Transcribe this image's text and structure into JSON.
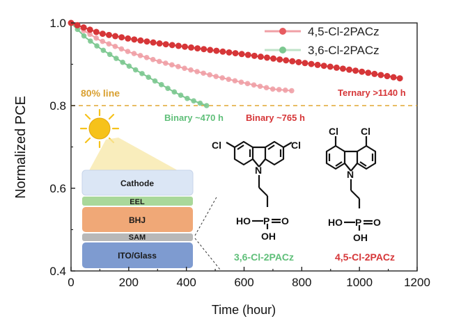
{
  "chart_data": {
    "type": "scatter",
    "xlabel": "Time (hour)",
    "ylabel": "Normalized PCE",
    "xlim": [
      0,
      1200
    ],
    "ylim": [
      0.4,
      1.0
    ],
    "xticks": [
      0,
      200,
      400,
      600,
      800,
      1000,
      1200
    ],
    "yticks": [
      0.4,
      0.6,
      0.8,
      1.0
    ],
    "xtick_labels": [
      "0",
      "200",
      "400",
      "600",
      "800",
      "1000",
      "1200"
    ],
    "ytick_labels": [
      "0.4",
      "0.6",
      "0.8",
      "1.0"
    ],
    "grid": false,
    "legend_position": "top-right",
    "legend": [
      "4,5-Cl-2PACz",
      "3,6-Cl-2PACz"
    ],
    "series": [
      {
        "name": "4,5-Cl-2PACz",
        "color": "#d63638",
        "x": [
          0,
          100,
          200,
          300,
          400,
          500,
          600,
          700,
          800,
          900,
          1000,
          1140
        ],
        "values": [
          1.0,
          0.975,
          0.962,
          0.951,
          0.942,
          0.933,
          0.924,
          0.914,
          0.904,
          0.894,
          0.883,
          0.866
        ]
      },
      {
        "color": "#f0a0a6",
        "x": [
          0,
          100,
          200,
          300,
          400,
          500,
          600,
          700,
          765
        ],
        "values": [
          1.0,
          0.958,
          0.93,
          0.908,
          0.889,
          0.871,
          0.855,
          0.84,
          0.836
        ]
      },
      {
        "name": "3,6-Cl-2PACz",
        "color": "#7cc890",
        "x": [
          0,
          50,
          100,
          150,
          200,
          250,
          300,
          350,
          400,
          470
        ],
        "values": [
          1.0,
          0.965,
          0.939,
          0.917,
          0.896,
          0.876,
          0.856,
          0.836,
          0.818,
          0.8
        ]
      }
    ],
    "reference_line": {
      "y": 0.8,
      "label": "80% line",
      "color": "#e0a530"
    },
    "annotations": [
      {
        "text": "Ternary >1140 h",
        "color": "#d63638"
      },
      {
        "text": "Binary ~470 h",
        "color": "#5fbf79"
      },
      {
        "text": "Binary ~765 h",
        "color": "#d63638"
      }
    ]
  },
  "inset": {
    "device_layers": [
      {
        "label": "Cathode",
        "color": "#dbe6f5"
      },
      {
        "label": "EEL",
        "color": "#a9d89a"
      },
      {
        "label": "BHJ",
        "color": "#f0a877"
      },
      {
        "label": "SAM",
        "color": "#b8b8b8"
      },
      {
        "label": "ITO/Glass",
        "color": "#7e9bd0"
      }
    ],
    "sun_color": "#f6c21b",
    "molecules": [
      {
        "name": "3,6-Cl-2PACz",
        "color": "#5fbf79",
        "substituents": [
          "Cl",
          "Cl",
          "N",
          "HO",
          "P",
          "O",
          "OH"
        ]
      },
      {
        "name": "4,5-Cl-2PACz",
        "color": "#d63638",
        "substituents": [
          "Cl",
          "Cl",
          "N",
          "HO",
          "P",
          "O",
          "OH"
        ]
      }
    ]
  }
}
